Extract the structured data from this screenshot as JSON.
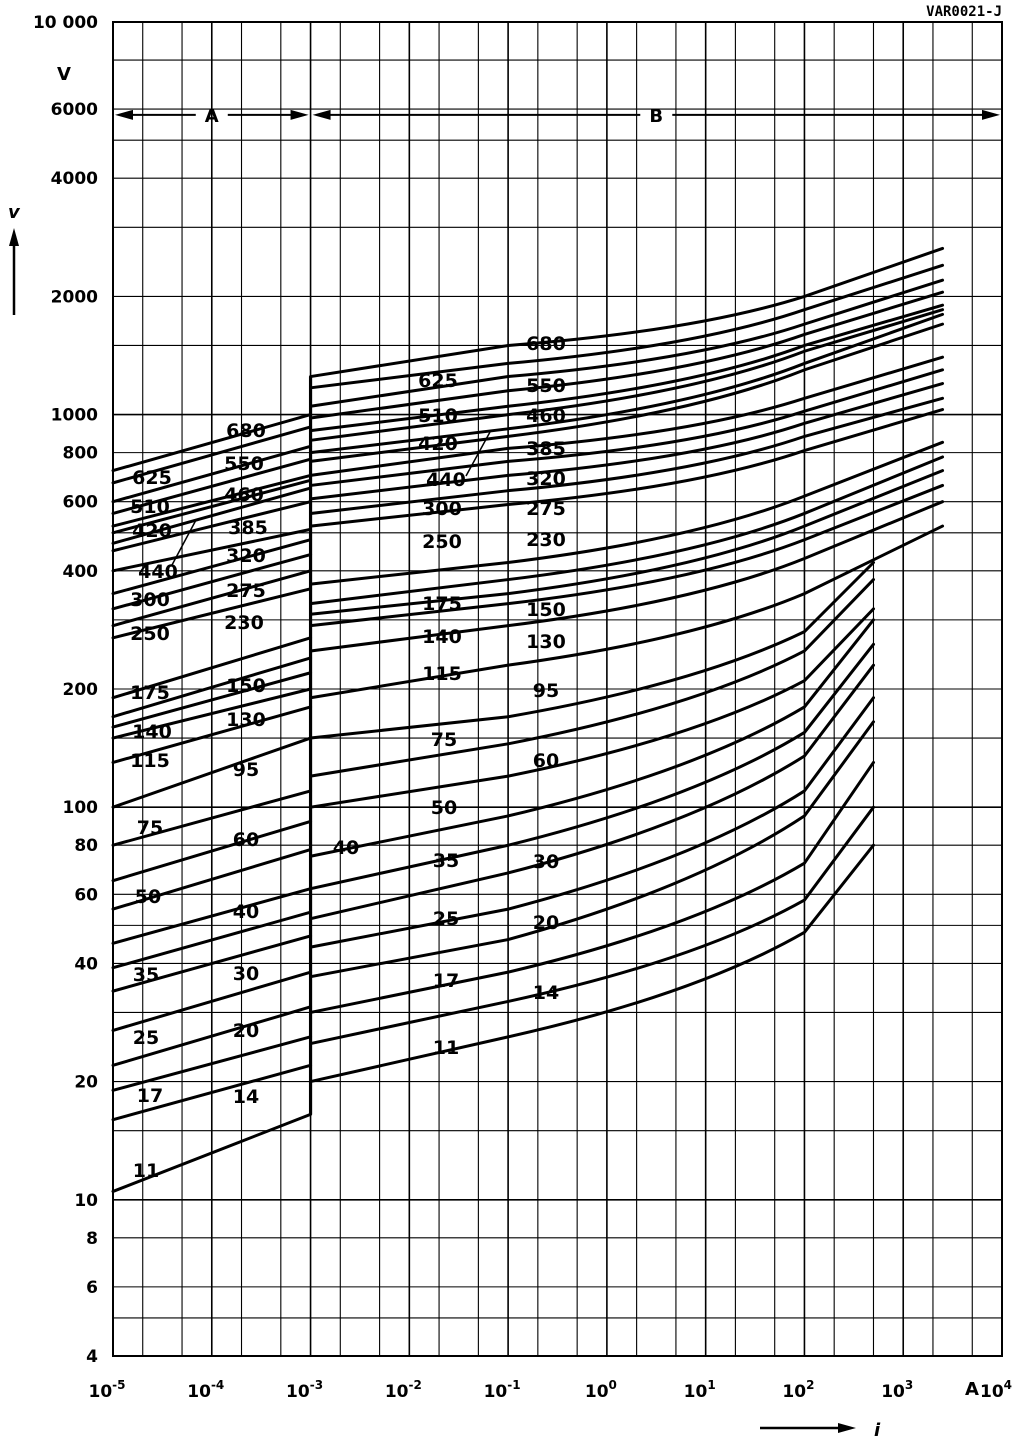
{
  "figure_id": "VAR0021-J",
  "chart_data": {
    "type": "line",
    "title": "",
    "xlabel": "i",
    "ylabel": "v",
    "x_unit": "A",
    "y_unit": "V",
    "x_scale": "log",
    "y_scale": "log",
    "xlim": [
      1e-05,
      10000
    ],
    "ylim": [
      4,
      10000
    ],
    "grid": true,
    "x_tick_labels": [
      "10-5",
      "10-4",
      "10-3",
      "10-2",
      "10-1",
      "100",
      "101",
      "102",
      "103",
      "104"
    ],
    "y_tick_labels": [
      "4",
      "6",
      "8",
      "10",
      "20",
      "40",
      "60",
      "80",
      "100",
      "200",
      "400",
      "600",
      "800",
      "1000",
      "2000",
      "4000",
      "6000",
      "10 000"
    ],
    "regions": [
      {
        "label": "A",
        "x_from": 1e-05,
        "x_to": 0.001
      },
      {
        "label": "B",
        "x_from": 0.001,
        "x_to": 10000
      }
    ],
    "region_a": {
      "x_range": [
        1e-05,
        0.001
      ],
      "series": [
        {
          "name": "680",
          "v_start": 720,
          "v_end": 1000
        },
        {
          "name": "625",
          "v_start": 670,
          "v_end": 930
        },
        {
          "name": "550",
          "v_start": 600,
          "v_end": 830
        },
        {
          "name": "510",
          "v_start": 560,
          "v_end": 770
        },
        {
          "name": "460",
          "v_start": 520,
          "v_end": 700
        },
        {
          "name": "440",
          "v_start": 500,
          "v_end": 680
        },
        {
          "name": "420",
          "v_start": 470,
          "v_end": 650
        },
        {
          "name": "385",
          "v_start": 450,
          "v_end": 600
        },
        {
          "name": "320",
          "v_start": 400,
          "v_end": 510
        },
        {
          "name": "300",
          "v_start": 350,
          "v_end": 480
        },
        {
          "name": "275",
          "v_start": 320,
          "v_end": 440
        },
        {
          "name": "250",
          "v_start": 290,
          "v_end": 400
        },
        {
          "name": "230",
          "v_start": 270,
          "v_end": 360
        },
        {
          "name": "175",
          "v_start": 190,
          "v_end": 270
        },
        {
          "name": "150",
          "v_start": 170,
          "v_end": 240
        },
        {
          "name": "140",
          "v_start": 160,
          "v_end": 220
        },
        {
          "name": "130",
          "v_start": 150,
          "v_end": 200
        },
        {
          "name": "115",
          "v_start": 130,
          "v_end": 180
        },
        {
          "name": "95",
          "v_start": 100,
          "v_end": 150
        },
        {
          "name": "75",
          "v_start": 80,
          "v_end": 110
        },
        {
          "name": "60",
          "v_start": 65,
          "v_end": 92
        },
        {
          "name": "50",
          "v_start": 55,
          "v_end": 78
        },
        {
          "name": "40",
          "v_start": 45,
          "v_end": 62
        },
        {
          "name": "35",
          "v_start": 39,
          "v_end": 54
        },
        {
          "name": "30",
          "v_start": 34,
          "v_end": 47
        },
        {
          "name": "25",
          "v_start": 27,
          "v_end": 38
        },
        {
          "name": "20",
          "v_start": 22,
          "v_end": 31
        },
        {
          "name": "17",
          "v_start": 19,
          "v_end": 26
        },
        {
          "name": "14",
          "v_start": 16,
          "v_end": 22
        },
        {
          "name": "11",
          "v_start": 10.5,
          "v_end": 16.5
        }
      ]
    },
    "region_b": {
      "x_start": 0.001,
      "series": [
        {
          "name": "680",
          "x_end": 2500,
          "v_start": 1250,
          "v_mid": 1500,
          "v_at_100": 2000,
          "v_end": 2650
        },
        {
          "name": "625",
          "x_end": 2500,
          "v_start": 1170,
          "v_mid": 1350,
          "v_at_100": 1850,
          "v_end": 2400
        },
        {
          "name": "550",
          "x_end": 2500,
          "v_start": 1050,
          "v_mid": 1250,
          "v_at_100": 1700,
          "v_end": 2200
        },
        {
          "name": "510",
          "x_end": 2500,
          "v_start": 980,
          "v_mid": 1150,
          "v_at_100": 1600,
          "v_end": 2050
        },
        {
          "name": "460",
          "x_end": 2500,
          "v_start": 910,
          "v_mid": 1050,
          "v_at_100": 1500,
          "v_end": 1900
        },
        {
          "name": "420",
          "x_end": 2500,
          "v_start": 860,
          "v_mid": 1000,
          "v_at_100": 1450,
          "v_end": 1850
        },
        {
          "name": "385",
          "x_end": 2500,
          "v_start": 800,
          "v_mid": 920,
          "v_at_100": 1350,
          "v_end": 1800
        },
        {
          "name": "440",
          "x_end": 2500,
          "v_start": 760,
          "v_mid": 880,
          "v_at_100": 1300,
          "v_end": 1700
        },
        {
          "name": "320",
          "x_end": 2500,
          "v_start": 700,
          "v_mid": 820,
          "v_at_100": 1100,
          "v_end": 1400
        },
        {
          "name": "300",
          "x_end": 2500,
          "v_start": 660,
          "v_mid": 760,
          "v_at_100": 1020,
          "v_end": 1300
        },
        {
          "name": "275",
          "x_end": 2500,
          "v_start": 610,
          "v_mid": 700,
          "v_at_100": 950,
          "v_end": 1200
        },
        {
          "name": "250",
          "x_end": 2500,
          "v_start": 560,
          "v_mid": 640,
          "v_at_100": 880,
          "v_end": 1100
        },
        {
          "name": "230",
          "x_end": 2500,
          "v_start": 520,
          "v_mid": 590,
          "v_at_100": 810,
          "v_end": 1030
        },
        {
          "name": "175",
          "x_end": 2500,
          "v_start": 370,
          "v_mid": 420,
          "v_at_100": 620,
          "v_end": 850
        },
        {
          "name": "150",
          "x_end": 2500,
          "v_start": 330,
          "v_mid": 380,
          "v_at_100": 560,
          "v_end": 780
        },
        {
          "name": "140",
          "x_end": 2500,
          "v_start": 310,
          "v_mid": 350,
          "v_at_100": 520,
          "v_end": 720
        },
        {
          "name": "130",
          "x_end": 2500,
          "v_start": 290,
          "v_mid": 330,
          "v_at_100": 480,
          "v_end": 660
        },
        {
          "name": "115",
          "x_end": 2500,
          "v_start": 250,
          "v_mid": 290,
          "v_at_100": 430,
          "v_end": 600
        },
        {
          "name": "95",
          "x_end": 2500,
          "v_start": 190,
          "v_mid": 230,
          "v_at_100": 350,
          "v_end": 520
        },
        {
          "name": "75",
          "x_end": 500,
          "v_start": 150,
          "v_mid": 170,
          "v_at_100": 280,
          "v_end": 420
        },
        {
          "name": "60",
          "x_end": 500,
          "v_start": 120,
          "v_mid": 145,
          "v_at_100": 250,
          "v_end": 380
        },
        {
          "name": "50",
          "x_end": 500,
          "v_start": 100,
          "v_mid": 120,
          "v_at_100": 210,
          "v_end": 320
        },
        {
          "name": "40",
          "x_end": 500,
          "v_start": 75,
          "v_mid": 95,
          "v_at_100": 180,
          "v_end": 300
        },
        {
          "name": "35",
          "x_end": 500,
          "v_start": 62,
          "v_mid": 80,
          "v_at_100": 155,
          "v_end": 260
        },
        {
          "name": "30",
          "x_end": 500,
          "v_start": 52,
          "v_mid": 68,
          "v_at_100": 135,
          "v_end": 230
        },
        {
          "name": "25",
          "x_end": 500,
          "v_start": 44,
          "v_mid": 55,
          "v_at_100": 110,
          "v_end": 190
        },
        {
          "name": "20",
          "x_end": 500,
          "v_start": 37,
          "v_mid": 46,
          "v_at_100": 95,
          "v_end": 165
        },
        {
          "name": "17",
          "x_end": 500,
          "v_start": 30,
          "v_mid": 38,
          "v_at_100": 72,
          "v_end": 130
        },
        {
          "name": "14",
          "x_end": 500,
          "v_start": 25,
          "v_mid": 32,
          "v_at_100": 58,
          "v_end": 100
        },
        {
          "name": "11",
          "x_end": 500,
          "v_start": 20,
          "v_mid": 26,
          "v_at_100": 48,
          "v_end": 80
        }
      ]
    }
  }
}
